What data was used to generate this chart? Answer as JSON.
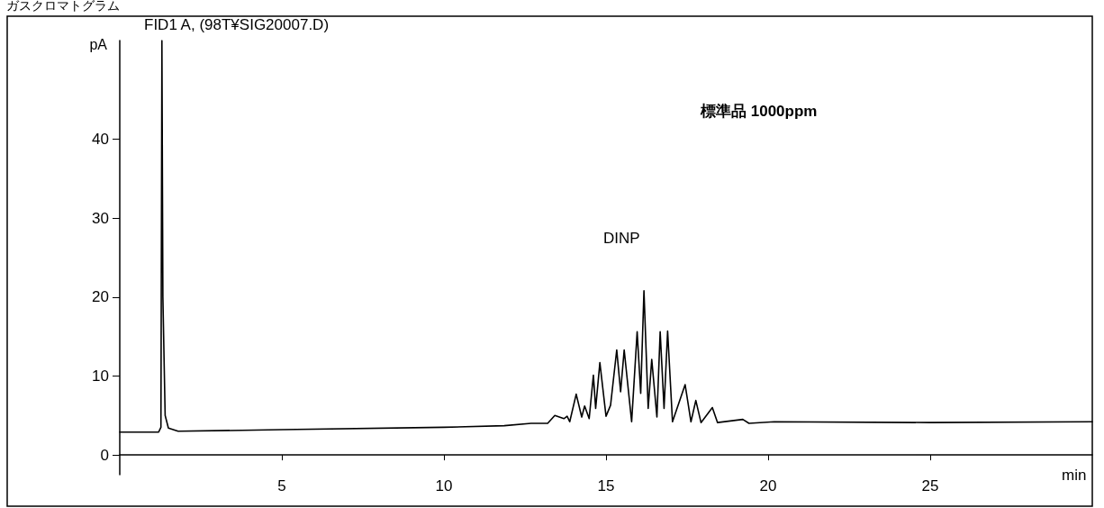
{
  "chart_data": {
    "type": "line",
    "title": "ガスクロマトグラム",
    "subtitle": "FID1 A, (98T¥SIG20007.D)",
    "xlabel": "min",
    "ylabel": "pA",
    "annotations": [
      "標準品 1000ppm",
      "DINP"
    ],
    "xlim": [
      0,
      30
    ],
    "xticks": [
      5,
      10,
      15,
      20,
      25
    ],
    "ylim": [
      -2.5,
      52.5
    ],
    "yticks": [
      0,
      10,
      20,
      30,
      40
    ],
    "grid": false,
    "marker": "none",
    "line_style": "solid",
    "series": [
      {
        "color": "#000000",
        "x": [
          0,
          1.2,
          1.27,
          1.3,
          1.33,
          1.4,
          1.5,
          1.8,
          5,
          10,
          11.86,
          12.69,
          13.2,
          13.42,
          13.7,
          13.8,
          13.88,
          14.08,
          14.25,
          14.34,
          14.48,
          14.61,
          14.68,
          14.81,
          15.0,
          15.14,
          15.33,
          15.45,
          15.56,
          15.79,
          15.96,
          16.07,
          16.17,
          16.3,
          16.41,
          16.57,
          16.67,
          16.79,
          16.9,
          17.05,
          17.44,
          17.62,
          17.77,
          17.93,
          18.28,
          18.44,
          19.22,
          19.41,
          20.19,
          25,
          30
        ],
        "values": [
          2.9,
          2.9,
          3.5,
          52.5,
          20,
          5,
          3.4,
          3.0,
          3.2,
          3.5,
          3.7,
          4.0,
          4.0,
          5.0,
          4.6,
          4.9,
          4.2,
          7.7,
          4.8,
          6.2,
          4.6,
          10.1,
          5.9,
          11.7,
          4.9,
          6.3,
          13.3,
          8.0,
          13.3,
          4.2,
          15.6,
          7.8,
          20.8,
          5.9,
          12.1,
          4.8,
          15.6,
          5.9,
          15.7,
          4.2,
          8.9,
          4.2,
          6.9,
          4.1,
          6.0,
          4.1,
          4.5,
          4.0,
          4.2,
          4.1,
          4.2
        ]
      }
    ]
  }
}
